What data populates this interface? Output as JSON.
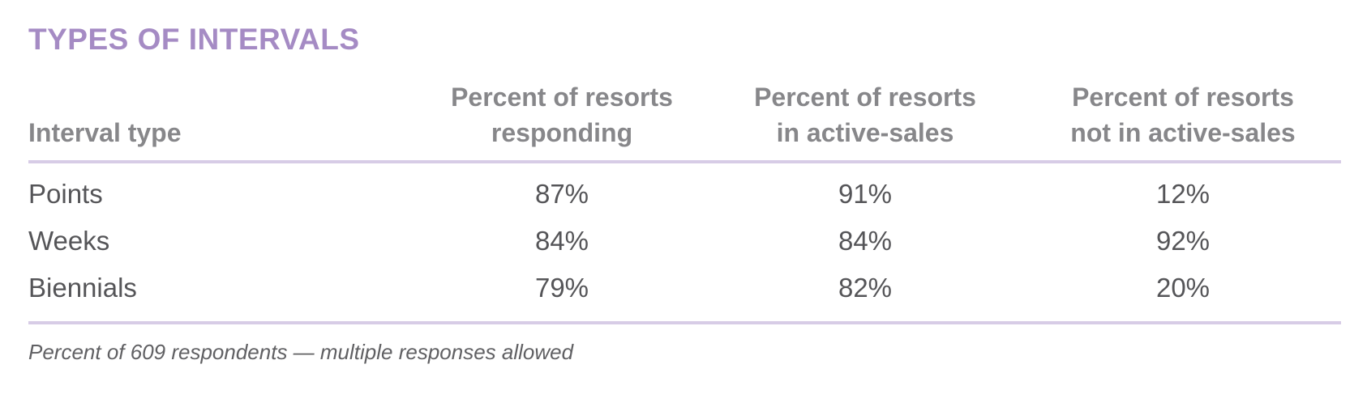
{
  "title": "TYPES OF INTERVALS",
  "table": {
    "headers": [
      "Interval type",
      "Percent of resorts responding",
      "Percent of resorts in active-sales",
      "Percent of resorts not in active-sales"
    ],
    "header_lines": [
      [
        "Interval type"
      ],
      [
        "Percent of resorts",
        "responding"
      ],
      [
        "Percent of resorts",
        "in active-sales"
      ],
      [
        "Percent of resorts",
        "not in active-sales"
      ]
    ],
    "rows": [
      [
        "Points",
        "87%",
        "91%",
        "12%"
      ],
      [
        "Weeks",
        "84%",
        "84%",
        "92%"
      ],
      [
        "Biennials",
        "79%",
        "82%",
        "20%"
      ]
    ]
  },
  "footnote": "Percent of 609 respondents — multiple responses allowed",
  "colors": {
    "title": "#a58bc4",
    "rule": "#d7cce6",
    "header": "#87878a",
    "text": "#555558"
  }
}
